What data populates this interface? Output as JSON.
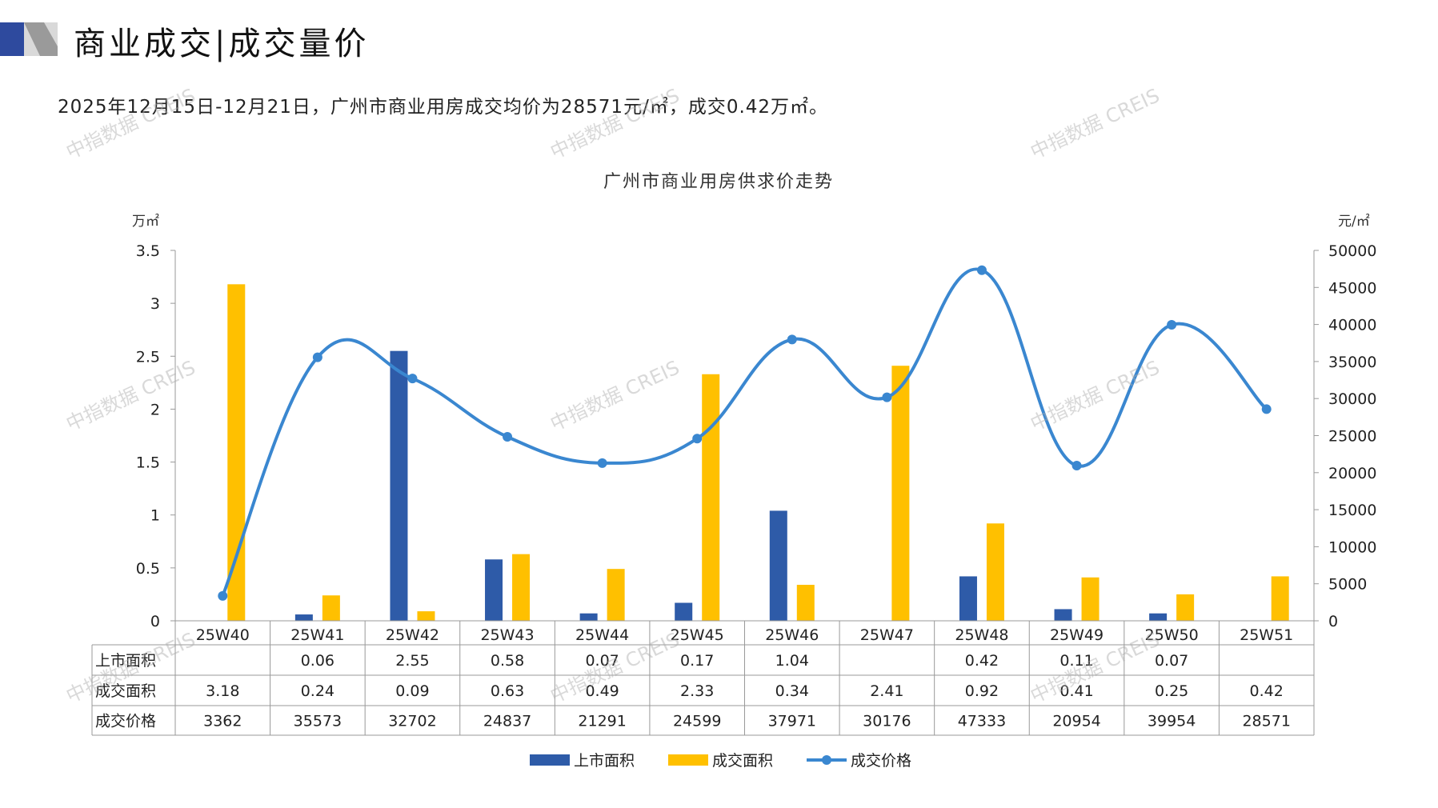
{
  "header": {
    "title": "商业成交|成交量价"
  },
  "subtitle": "2025年12月15日-12月21日，广州市商业用房成交均价为28571元/㎡，成交0.42万㎡。",
  "watermark": "中指数据 CREIS",
  "colors": {
    "supply": "#2E5BA8",
    "deal_area": "#FFC000",
    "price": "#3A87D0",
    "brand": "#2E4A9E"
  },
  "chart_data": {
    "type": "bar+line",
    "title": "广州市商业用房供求价走势",
    "ylabel_left": "万㎡",
    "ylabel_right": "元/㎡",
    "ylim_left": [
      0,
      3.5
    ],
    "yticks_left": [
      "0",
      "0.5",
      "1",
      "1.5",
      "2",
      "2.5",
      "3",
      "3.5"
    ],
    "ylim_right": [
      0,
      50000
    ],
    "yticks_right": [
      "0",
      "5000",
      "10000",
      "15000",
      "20000",
      "25000",
      "30000",
      "35000",
      "40000",
      "45000",
      "50000"
    ],
    "categories": [
      "25W40",
      "25W41",
      "25W42",
      "25W43",
      "25W44",
      "25W45",
      "25W46",
      "25W47",
      "25W48",
      "25W49",
      "25W50",
      "25W51"
    ],
    "series": [
      {
        "name": "上市面积",
        "type": "bar",
        "axis": "left",
        "values": [
          null,
          0.06,
          2.55,
          0.58,
          0.07,
          0.17,
          1.04,
          null,
          0.42,
          0.11,
          0.07,
          null
        ]
      },
      {
        "name": "成交面积",
        "type": "bar",
        "axis": "left",
        "values": [
          3.18,
          0.24,
          0.09,
          0.63,
          0.49,
          2.33,
          0.34,
          2.41,
          0.92,
          0.41,
          0.25,
          0.42
        ]
      },
      {
        "name": "成交价格",
        "type": "line",
        "axis": "right",
        "values": [
          3362,
          35573,
          32702,
          24837,
          21291,
          24599,
          37971,
          30176,
          47333,
          20954,
          39954,
          28571
        ]
      }
    ],
    "legend": "bottom"
  }
}
